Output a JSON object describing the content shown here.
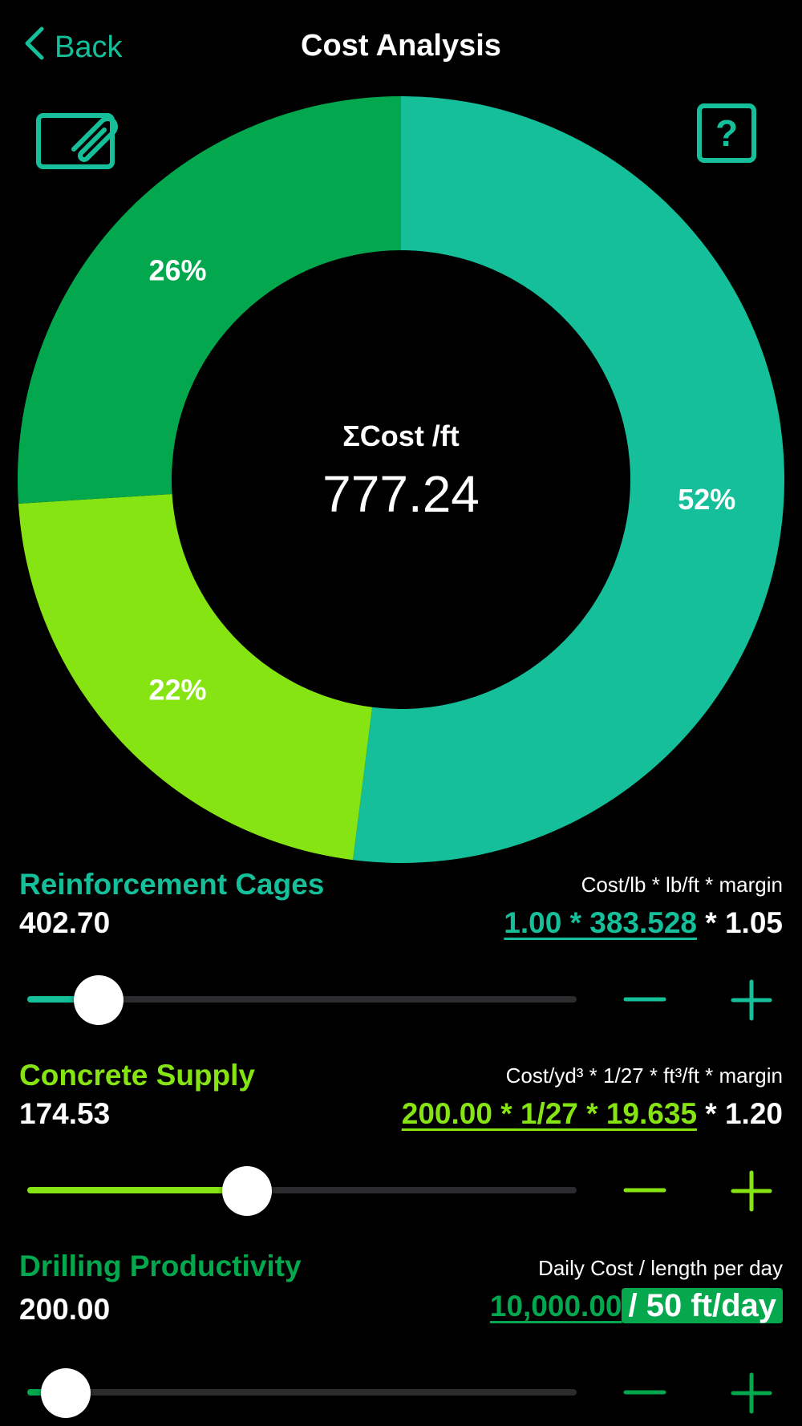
{
  "nav": {
    "back_label": "Back",
    "title": "Cost Analysis",
    "back_icon": "chevron-left-icon",
    "left_action_icon": "attachment-edit-icon",
    "right_action_icon": "help-icon"
  },
  "colors": {
    "teal": "#14bf9a",
    "dark_green": "#03a84e",
    "lime": "#86e413",
    "background": "#000000",
    "track": "#2c2c2e"
  },
  "chart_data": {
    "type": "pie",
    "donut": true,
    "center_label": "ΣCost /ft",
    "center_value": "777.24",
    "slices": [
      {
        "name": "Reinforcement Cages",
        "percent": 52,
        "label": "52%",
        "color": "#14bf9a"
      },
      {
        "name": "Concrete Supply",
        "percent": 22,
        "label": "22%",
        "color": "#86e413"
      },
      {
        "name": "Drilling Productivity",
        "percent": 26,
        "label": "26%",
        "color": "#03a84e"
      }
    ]
  },
  "rows": {
    "reinforcement": {
      "title": "Reinforcement Cages",
      "value": "402.70",
      "formula": "Cost/lb * lb/ft * margin",
      "expr_link": "1.00 * 383.528",
      "expr_rest": " * 1.05",
      "slider_fraction": 0.13,
      "minus_icon": "minus-icon",
      "plus_icon": "plus-icon"
    },
    "concrete": {
      "title": "Concrete Supply",
      "value": "174.53",
      "formula": "Cost/yd³ * 1/27 * ft³/ft * margin",
      "expr_link": "200.00 * 1/27 * 19.635",
      "expr_rest": " * 1.20",
      "slider_fraction": 0.4,
      "minus_icon": "minus-icon",
      "plus_icon": "plus-icon"
    },
    "drilling": {
      "title": "Drilling Productivity",
      "value": "200.00",
      "formula": "Daily Cost / length per day",
      "expr_link": "10,000.00",
      "expr_chip": "/ 50 ft/day",
      "slider_fraction": 0.07,
      "minus_icon": "minus-icon",
      "plus_icon": "plus-icon"
    }
  }
}
